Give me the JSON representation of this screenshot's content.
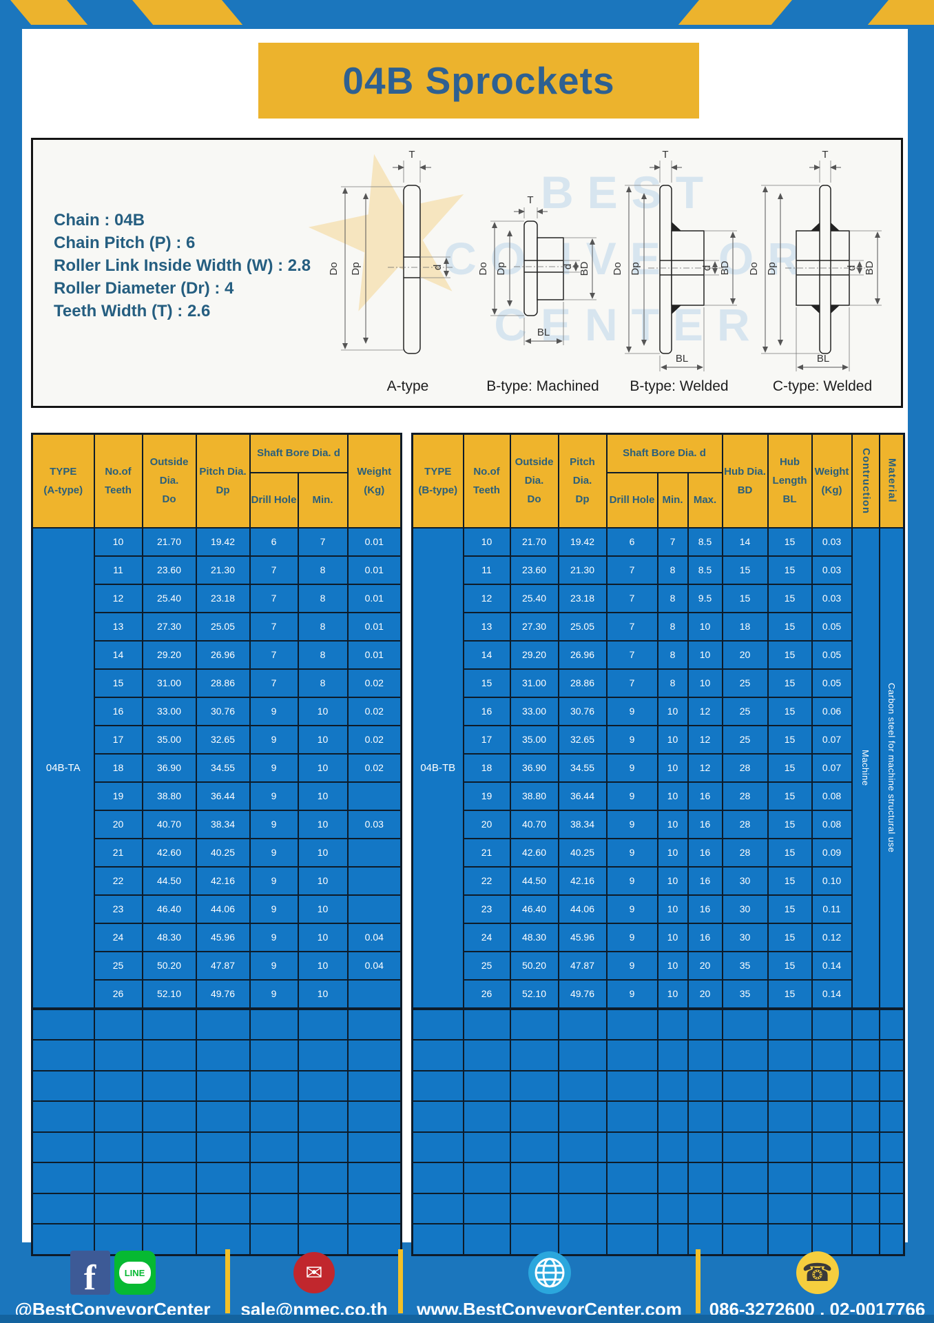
{
  "page": {
    "title": "04B Sprockets"
  },
  "specs": {
    "lines": [
      "Chain  : 04B",
      "Chain Pitch (P)  :  6",
      "Roller Link Inside Width (W)  :  2.8",
      "Roller Diameter (Dr)  : 4",
      "Teeth Width (T)  :  2.6"
    ]
  },
  "diagrams": {
    "captions": [
      "A-type",
      "B-type: Machined",
      "B-type: Welded",
      "C-type: Welded"
    ],
    "dims": {
      "T": "T",
      "Do": "Do",
      "Dp": "Dp",
      "d": "d",
      "BD": "BD",
      "BL": "BL"
    },
    "watermark_lines": [
      "BEST",
      "CONVEYOR",
      "CENTER"
    ]
  },
  "tables": {
    "left": {
      "headers": {
        "type": "TYPE\n(A-type)",
        "teeth": "No.of\nTeeth",
        "outside": "Outside\nDia.\nDo",
        "pitch": "Pitch Dia.\nDp",
        "shaft_bore": "Shaft Bore Dia. d",
        "drill": "Drill Hole",
        "min": "Min.",
        "weight": "Weight\n(Kg)"
      },
      "type_value": "04B-TA",
      "rows": [
        [
          "10",
          "21.70",
          "19.42",
          "6",
          "7",
          "0.01"
        ],
        [
          "11",
          "23.60",
          "21.30",
          "7",
          "8",
          "0.01"
        ],
        [
          "12",
          "25.40",
          "23.18",
          "7",
          "8",
          "0.01"
        ],
        [
          "13",
          "27.30",
          "25.05",
          "7",
          "8",
          "0.01"
        ],
        [
          "14",
          "29.20",
          "26.96",
          "7",
          "8",
          "0.01"
        ],
        [
          "15",
          "31.00",
          "28.86",
          "7",
          "8",
          "0.02"
        ],
        [
          "16",
          "33.00",
          "30.76",
          "9",
          "10",
          "0.02"
        ],
        [
          "17",
          "35.00",
          "32.65",
          "9",
          "10",
          "0.02"
        ],
        [
          "18",
          "36.90",
          "34.55",
          "9",
          "10",
          "0.02"
        ],
        [
          "19",
          "38.80",
          "36.44",
          "9",
          "10",
          ""
        ],
        [
          "20",
          "40.70",
          "38.34",
          "9",
          "10",
          "0.03"
        ],
        [
          "21",
          "42.60",
          "40.25",
          "9",
          "10",
          ""
        ],
        [
          "22",
          "44.50",
          "42.16",
          "9",
          "10",
          ""
        ],
        [
          "23",
          "46.40",
          "44.06",
          "9",
          "10",
          ""
        ],
        [
          "24",
          "48.30",
          "45.96",
          "9",
          "10",
          "0.04"
        ],
        [
          "25",
          "50.20",
          "47.87",
          "9",
          "10",
          "0.04"
        ],
        [
          "26",
          "52.10",
          "49.76",
          "9",
          "10",
          ""
        ]
      ],
      "empty_rows": 8
    },
    "right": {
      "headers": {
        "type": "TYPE\n(B-type)",
        "teeth": "No.of\nTeeth",
        "outside": "Outside\nDia.\nDo",
        "pitch": "Pitch Dia.\nDp",
        "shaft_bore": "Shaft Bore Dia. d",
        "drill": "Drill Hole",
        "min": "Min.",
        "max": "Max.",
        "hub_dia": "Hub Dia.\nBD",
        "hub_len": "Hub\nLength\nBL",
        "weight": "Weight\n(Kg)",
        "construction": "Contruction",
        "material": "Material"
      },
      "type_value": "04B-TB",
      "construction_value": "Machine",
      "material_value": "Carbon steel for machine structural use",
      "rows": [
        [
          "10",
          "21.70",
          "19.42",
          "6",
          "7",
          "8.5",
          "14",
          "15",
          "0.03"
        ],
        [
          "11",
          "23.60",
          "21.30",
          "7",
          "8",
          "8.5",
          "15",
          "15",
          "0.03"
        ],
        [
          "12",
          "25.40",
          "23.18",
          "7",
          "8",
          "9.5",
          "15",
          "15",
          "0.03"
        ],
        [
          "13",
          "27.30",
          "25.05",
          "7",
          "8",
          "10",
          "18",
          "15",
          "0.05"
        ],
        [
          "14",
          "29.20",
          "26.96",
          "7",
          "8",
          "10",
          "20",
          "15",
          "0.05"
        ],
        [
          "15",
          "31.00",
          "28.86",
          "7",
          "8",
          "10",
          "25",
          "15",
          "0.05"
        ],
        [
          "16",
          "33.00",
          "30.76",
          "9",
          "10",
          "12",
          "25",
          "15",
          "0.06"
        ],
        [
          "17",
          "35.00",
          "32.65",
          "9",
          "10",
          "12",
          "25",
          "15",
          "0.07"
        ],
        [
          "18",
          "36.90",
          "34.55",
          "9",
          "10",
          "12",
          "28",
          "15",
          "0.07"
        ],
        [
          "19",
          "38.80",
          "36.44",
          "9",
          "10",
          "16",
          "28",
          "15",
          "0.08"
        ],
        [
          "20",
          "40.70",
          "38.34",
          "9",
          "10",
          "16",
          "28",
          "15",
          "0.08"
        ],
        [
          "21",
          "42.60",
          "40.25",
          "9",
          "10",
          "16",
          "28",
          "15",
          "0.09"
        ],
        [
          "22",
          "44.50",
          "42.16",
          "9",
          "10",
          "16",
          "30",
          "15",
          "0.10"
        ],
        [
          "23",
          "46.40",
          "44.06",
          "9",
          "10",
          "16",
          "30",
          "15",
          "0.11"
        ],
        [
          "24",
          "48.30",
          "45.96",
          "9",
          "10",
          "16",
          "30",
          "15",
          "0.12"
        ],
        [
          "25",
          "50.20",
          "47.87",
          "9",
          "10",
          "20",
          "35",
          "15",
          "0.14"
        ],
        [
          "26",
          "52.10",
          "49.76",
          "9",
          "10",
          "20",
          "35",
          "15",
          "0.14"
        ]
      ],
      "empty_rows": 8
    }
  },
  "footer": {
    "social_handle": "@BestConveyorCenter",
    "line_label": "LINE",
    "facebook_letter": "f",
    "email": "sale@nmec.co.th",
    "email_glyph": "✉",
    "website": "www.BestConveyorCenter.com",
    "phones": "086-3272600 , 02-0017766",
    "phone_glyph": "☎"
  },
  "colors": {
    "frame_blue": "#1b76bd",
    "accent_yellow": "#ecb32d",
    "header_yellow": "#efb42c",
    "cell_blue": "#1377c5",
    "grid_dark": "#0d1b29",
    "title_blue": "#2e6091",
    "spec_text": "#255e80"
  }
}
